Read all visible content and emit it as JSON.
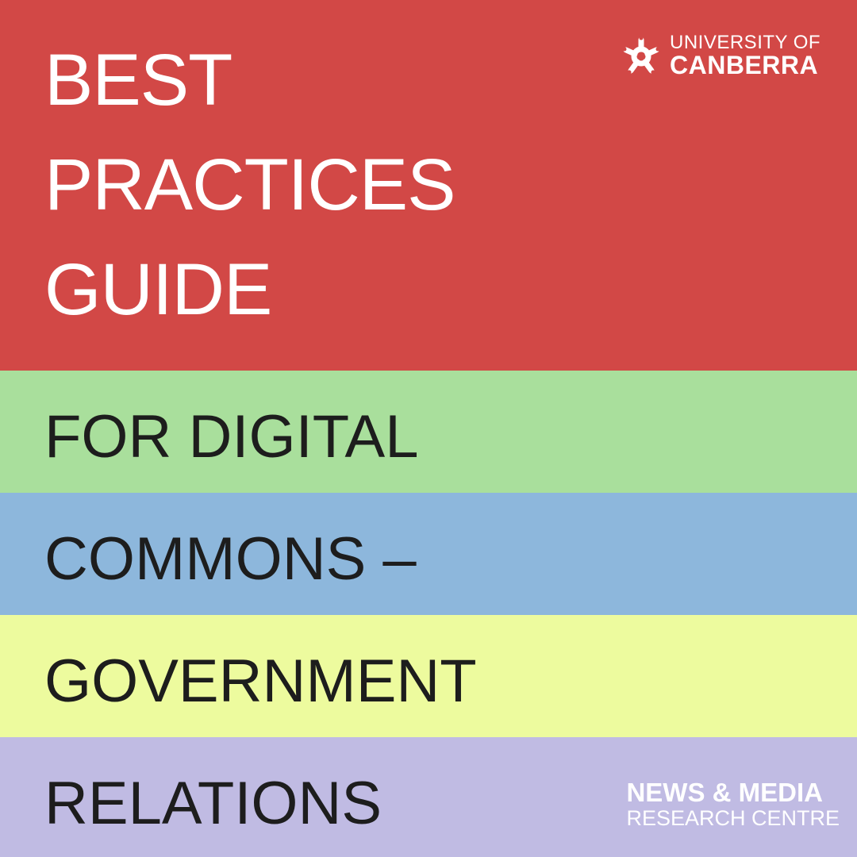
{
  "colors": {
    "title_band": "#D24846",
    "band_1": "#A9DF9C",
    "band_2": "#8DB7DC",
    "band_3": "#EDFB9E",
    "band_4": "#C0BBE3",
    "title_text": "#FFFFFF",
    "body_text": "#1D1D1D"
  },
  "title": {
    "lines": [
      "BEST",
      "PRACTICES",
      "GUIDE"
    ]
  },
  "subtitle": {
    "lines": [
      "FOR DIGITAL",
      "COMMONS –",
      "GOVERNMENT",
      "RELATIONS"
    ]
  },
  "logos": {
    "university": {
      "icon": "university-of-canberra-emblem-icon",
      "line1": "UNIVERSITY OF",
      "line2": "CANBERRA"
    },
    "research_centre": {
      "line1": "NEWS & MEDIA",
      "line2": "RESEARCH CENTRE"
    }
  }
}
